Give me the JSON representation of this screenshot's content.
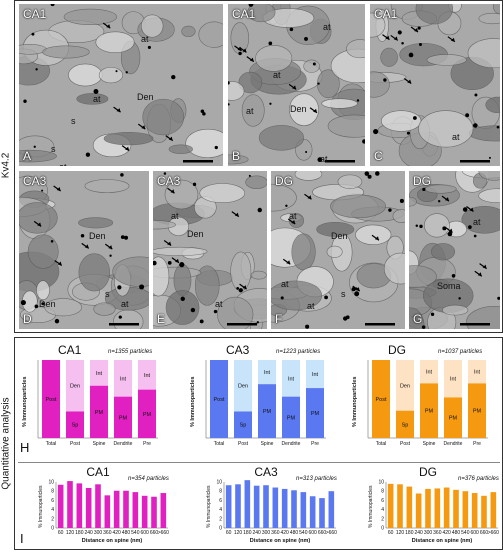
{
  "side_labels": {
    "top": "Kv4.2",
    "bottom": "Quantitative analysis"
  },
  "micrographs": [
    {
      "id": "A",
      "title": "CA1",
      "letter": "A",
      "labels": [
        "Den",
        "at",
        "at",
        "s",
        "at",
        "s"
      ]
    },
    {
      "id": "B",
      "title": "CA1",
      "letter": "B",
      "labels": [
        "at",
        "at",
        "Den",
        "at",
        "at"
      ]
    },
    {
      "id": "C",
      "title": "CA1",
      "letter": "C",
      "labels": [
        "at"
      ]
    },
    {
      "id": "D",
      "title": "CA3",
      "letter": "D",
      "labels": [
        "Den",
        "Den",
        "s",
        "at"
      ]
    },
    {
      "id": "E",
      "title": "CA3",
      "letter": "E",
      "labels": [
        "at",
        "Den",
        "at"
      ]
    },
    {
      "id": "F",
      "title": "DG",
      "letter": "F",
      "labels": [
        "at",
        "Den",
        "at",
        "s",
        "at"
      ]
    },
    {
      "id": "G",
      "title": "DG",
      "letter": "G",
      "labels": [
        "at",
        "Soma"
      ]
    }
  ],
  "panel_letters": {
    "H": "H",
    "I": "I"
  },
  "chart_data": [
    {
      "type": "bar",
      "title": "CA1",
      "note": "n=1355 particles",
      "ylabel": "% Immunoparticles",
      "ylim": [
        0,
        100
      ],
      "categories": [
        "Total",
        "Post",
        "Spine",
        "Dendrite",
        "Pre"
      ],
      "color": "#e020c0",
      "light": "#f5bff0",
      "values": [
        100,
        34,
        67,
        53,
        62
      ],
      "dark_labels": [
        "Post",
        "Sp",
        "PM",
        "PM",
        "PM"
      ],
      "light_labels": [
        "",
        "Den",
        "Int",
        "Int",
        "Int"
      ]
    },
    {
      "type": "bar",
      "title": "CA3",
      "note": "n=1223 particles",
      "ylabel": "% Immunoparticles",
      "ylim": [
        0,
        100
      ],
      "categories": [
        "Total",
        "Post",
        "Spine",
        "Dendrite",
        "Pre"
      ],
      "color": "#5a78f0",
      "light": "#c8e4fa",
      "values": [
        100,
        34,
        69,
        53,
        64
      ],
      "dark_labels": [
        "Post",
        "Sp",
        "PM",
        "PM",
        "PM"
      ],
      "light_labels": [
        "",
        "Den",
        "Int",
        "Int",
        "Int"
      ]
    },
    {
      "type": "bar",
      "title": "DG",
      "note": "n=1037 particles",
      "ylabel": "% Immunoparticles",
      "ylim": [
        0,
        100
      ],
      "categories": [
        "Total",
        "Post",
        "Spine",
        "Dendrite",
        "Pre"
      ],
      "color": "#f59a10",
      "light": "#fde3c4",
      "values": [
        100,
        35,
        70,
        52,
        70
      ],
      "dark_labels": [
        "Post",
        "Sp",
        "PM",
        "PM",
        "PM"
      ],
      "light_labels": [
        "",
        "Den",
        "Int",
        "Int",
        "Int"
      ]
    },
    {
      "type": "bar",
      "title": "CA1",
      "note": "n=354 particles",
      "ylabel": "% Immunoparticles",
      "xlabel": "Distance on spine (nm)",
      "ylim": [
        0,
        10
      ],
      "yticks": [
        0,
        2,
        4,
        6,
        8,
        10
      ],
      "categories": [
        "60",
        "120",
        "180",
        "240",
        "300",
        "360",
        "420",
        "480",
        "540",
        "600",
        "660",
        ">660"
      ],
      "color": "#e020c0",
      "values": [
        9.4,
        10.2,
        9.7,
        8.7,
        9.5,
        7.1,
        8.1,
        8.1,
        7.8,
        7.0,
        6.8,
        7.6
      ]
    },
    {
      "type": "bar",
      "title": "CA3",
      "note": "n=313 particles",
      "ylabel": "% Immunoparticles",
      "xlabel": "Distance on spine (nm)",
      "ylim": [
        0,
        10
      ],
      "yticks": [
        0,
        2,
        4,
        6,
        8,
        10
      ],
      "categories": [
        "60",
        "120",
        "180",
        "240",
        "300",
        "360",
        "420",
        "480",
        "540",
        "600",
        "660",
        ">660"
      ],
      "color": "#5a78f0",
      "values": [
        9.3,
        9.5,
        10.4,
        9.2,
        9.3,
        8.8,
        8.5,
        8.2,
        7.8,
        6.9,
        6.5,
        8.0
      ]
    },
    {
      "type": "bar",
      "title": "DG",
      "note": "n=376 particles",
      "ylabel": "% Immunoparticles",
      "xlabel": "Distance on spine (nm)",
      "ylim": [
        0,
        10
      ],
      "yticks": [
        0,
        2,
        4,
        6,
        8,
        10
      ],
      "categories": [
        "60",
        "120",
        "180",
        "240",
        "300",
        "360",
        "420",
        "480",
        "540",
        "600",
        "660",
        ">660"
      ],
      "color": "#f59a10",
      "values": [
        9.6,
        9.5,
        9.0,
        7.5,
        8.5,
        8.6,
        8.8,
        8.3,
        8.0,
        7.6,
        7.0,
        7.8
      ]
    }
  ]
}
